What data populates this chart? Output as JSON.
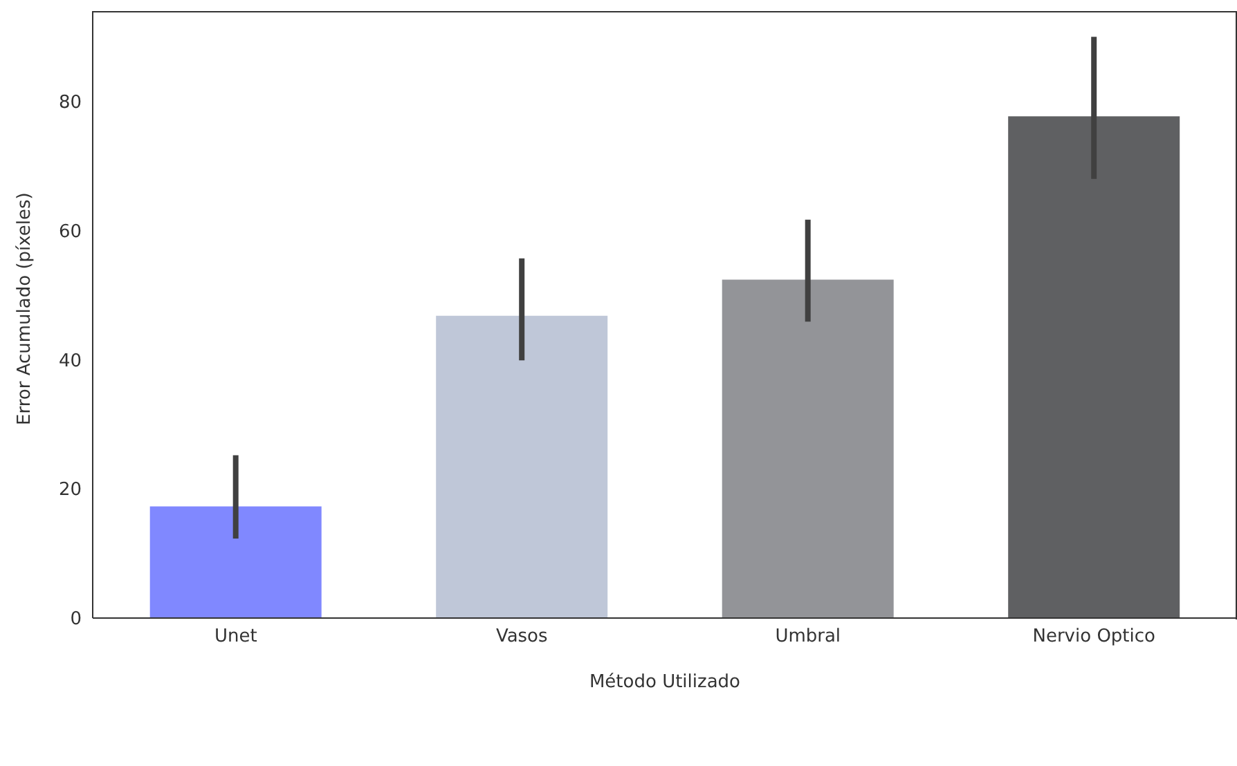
{
  "chart_data": {
    "type": "bar",
    "xlabel": "Método Utilizado",
    "ylabel": "Error Acumulado (píxeles)",
    "categories": [
      "Unet",
      "Vasos",
      "Umbral",
      "Nervio Optico"
    ],
    "values": [
      17.3,
      46.8,
      52.4,
      77.7
    ],
    "colors": [
      "#8088ff",
      "#bfc7d8",
      "#939498",
      "#5f6062"
    ],
    "errors": [
      [
        12.3,
        25.2
      ],
      [
        39.9,
        55.7
      ],
      [
        45.9,
        61.7
      ],
      [
        68.0,
        90.0
      ]
    ],
    "ylim": [
      0,
      94
    ],
    "yticks": [
      0,
      20,
      40,
      60,
      80
    ]
  }
}
